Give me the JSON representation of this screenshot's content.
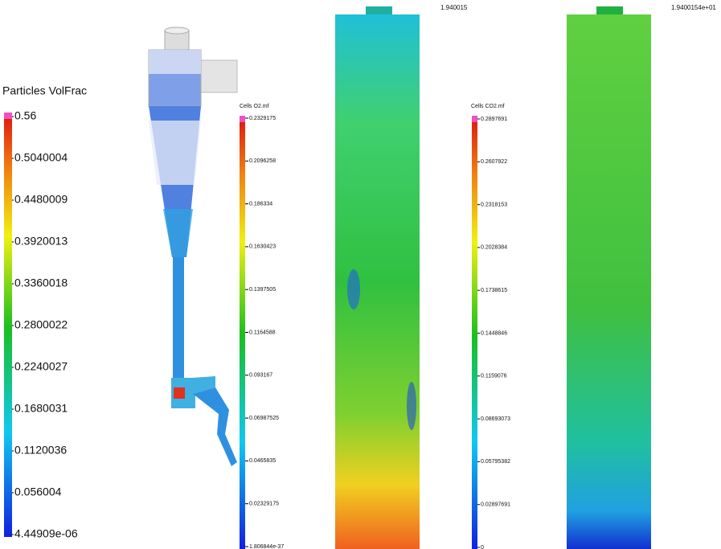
{
  "legends": [
    {
      "title": "Particles VolFrac",
      "labels": [
        "0.56",
        "0.5040004",
        "0.4480009",
        "0.3920013",
        "0.3360018",
        "0.2800022",
        "0.2240027",
        "0.1680031",
        "0.1120036",
        "0.056004",
        "4.44909e-06"
      ]
    },
    {
      "title": "Cells O2.mf",
      "labels": [
        "0.2329175",
        "0.2096258",
        "0.186334",
        "0.1630423",
        "0.1397505",
        "0.1164588",
        "0.093167",
        "0.06987525",
        "0.0465835",
        "0.02329175",
        "1.806844e-37"
      ]
    },
    {
      "title": "Cells CO2.mf",
      "labels": [
        "0.2897691",
        "0.2607922",
        "0.2318153",
        "0.2028384",
        "0.1738615",
        "0.1448846",
        "0.1159076",
        "0.08693073",
        "0.05795382",
        "0.02897691",
        "0"
      ]
    }
  ],
  "timestamps": [
    "1.940015",
    "1.9400154e+01"
  ]
}
